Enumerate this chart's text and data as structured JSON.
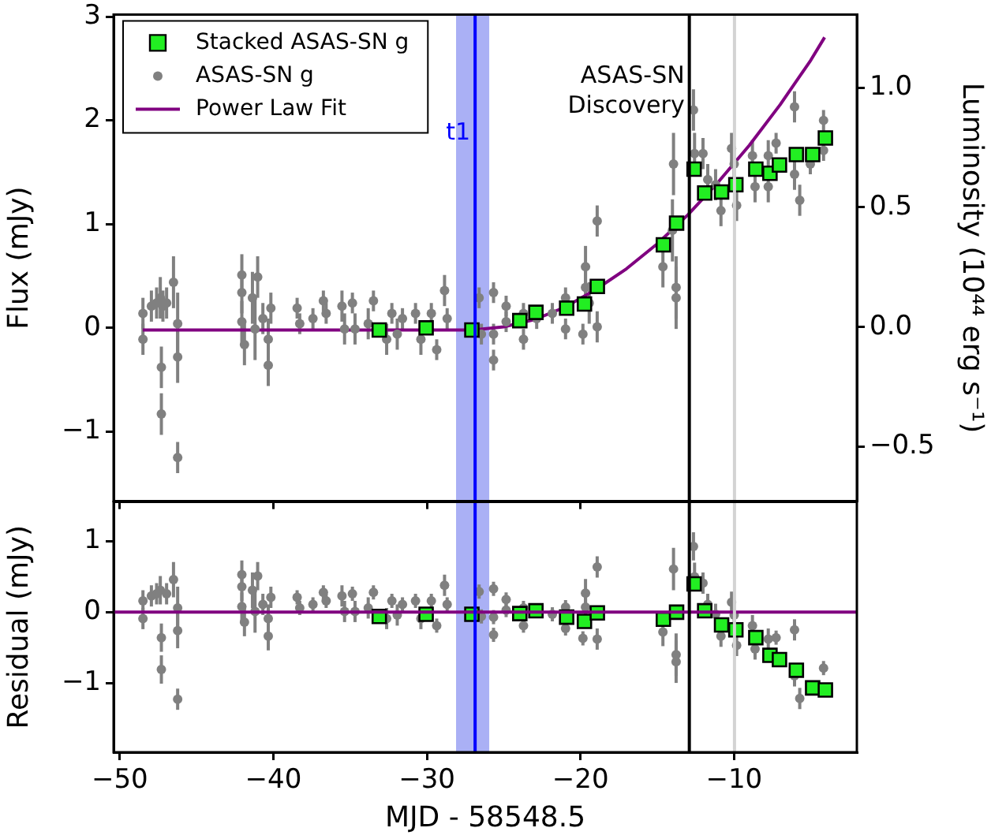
{
  "chart_data": [
    {
      "type": "scatter",
      "ylabel": "Flux (mJy)",
      "y2label": "Luminosity (10⁴⁴ erg s⁻¹)",
      "legend": "top left",
      "tick_labels": "y",
      "xlim": [
        -50.4,
        -2
      ],
      "xticks": [
        -50,
        -40,
        -30,
        -20,
        -10
      ],
      "ylim": [
        -1.67,
        3.02
      ],
      "yticks": [
        {
          "value": -1,
          "label": "−1"
        },
        0,
        1,
        2,
        3
      ],
      "y2lim": [
        -0.727,
        1.305
      ],
      "y2ticks": [
        {
          "value": -0.5,
          "label": "−0.5"
        },
        {
          "value": 0,
          "label": "0.0"
        },
        {
          "value": 0.5,
          "label": "0.5"
        },
        {
          "value": 1,
          "label": "1.0"
        }
      ],
      "bands": [
        {
          "axis": "x",
          "from": -28.1,
          "to": -25.94,
          "color": "#aab0f5"
        }
      ],
      "ref_lines": [
        {
          "axis": "x",
          "value": -26.86,
          "label": "t1",
          "color": "#0000ff"
        },
        {
          "axis": "x",
          "value": -12.91,
          "label": "ASAS-SN Discovery",
          "color": "#000000"
        },
        {
          "axis": "x",
          "value": -9.97,
          "color": "#d3d3d3"
        }
      ],
      "series": [
        {
          "name": "Stacked ASAS-SN g",
          "type": "scatter",
          "marker": "square",
          "color": "#22ee22",
          "x": [
            -33.1,
            -30.05,
            -27.07,
            -23.95,
            -22.9,
            -20.9,
            -19.74,
            -18.9,
            -14.6,
            -13.74,
            -12.6,
            -11.91,
            -10.81,
            -9.88,
            -8.58,
            -7.66,
            -7.04,
            -5.94,
            -4.88,
            -4.05
          ],
          "values": [
            -0.02,
            0,
            -0.02,
            0.07,
            0.15,
            0.19,
            0.23,
            0.4,
            0.8,
            1.01,
            1.53,
            1.3,
            1.31,
            1.38,
            1.53,
            1.49,
            1.57,
            1.67,
            1.67,
            1.83
          ]
        },
        {
          "name": "ASAS-SN g",
          "type": "scatter",
          "marker": "circle",
          "color": "#808080",
          "x": [
            -48.49,
            -48.49,
            -47.94,
            -47.6,
            -47.36,
            -47.29,
            -47.29,
            -47.19,
            -46.95,
            -46.5,
            -46.23,
            -46.23,
            -46.23,
            -42.05,
            -42.05,
            -42.05,
            -41.88,
            -41.36,
            -41.19,
            -41.02,
            -40.68,
            -40.33,
            -40.33,
            -40.16,
            -38.45,
            -38.28,
            -37.42,
            -36.74,
            -36.56,
            -35.53,
            -35.36,
            -34.85,
            -34.68,
            -33.82,
            -33.48,
            -32.62,
            -32.28,
            -31.93,
            -31.59,
            -30.74,
            -30.39,
            -29.71,
            -29.36,
            -28.85,
            -28.68,
            -26.6,
            -26.45,
            -25.66,
            -25.66,
            -25.66,
            -24.84,
            -24.84,
            -23.71,
            -23.71,
            -22.85,
            -21.83,
            -20.97,
            -20.97,
            -19.84,
            -19.67,
            -19.67,
            -19.43,
            -18.91,
            -18.91,
            -14.63,
            -14.01,
            -13.94,
            -13.77,
            -13.77,
            -12.64,
            -12.57,
            -12.02,
            -11.71,
            -11.2,
            -10.85,
            -10.16,
            -9.99,
            -9.83,
            -8.8,
            -8.63,
            -7.77,
            -7.77,
            -7.26,
            -6.06,
            -6.06,
            -5.72,
            -5.03,
            -4.17,
            -4.17
          ],
          "values": [
            0.14,
            -0.11,
            0.21,
            0.24,
            0.29,
            -0.38,
            -0.83,
            0.21,
            0.24,
            0.44,
            0.04,
            -0.28,
            -1.25,
            0.51,
            0.34,
            0.06,
            -0.16,
            0.29,
            -0.01,
            0.49,
            0.09,
            -0.11,
            -0.36,
            0.19,
            0.19,
            0.04,
            0.09,
            0.26,
            0.14,
            0.21,
            -0.01,
            0.24,
            -0.01,
            0.04,
            0.26,
            -0.11,
            0.14,
            -0.06,
            0.09,
            0.14,
            -0.11,
            0.14,
            -0.21,
            0.36,
            0.09,
            0.29,
            -0.06,
            0.34,
            -0.06,
            -0.31,
            0.21,
            0.06,
            0.14,
            -0.11,
            0.09,
            0.14,
            0.29,
            -0.01,
            -0.06,
            0.59,
            0.39,
            0.24,
            1.03,
            0.01,
            0.59,
            0.94,
            1.58,
            0.39,
            0.29,
            2.1,
            1.68,
            1.68,
            1.43,
            1.38,
            1.13,
            1.73,
            1.58,
            1.18,
            1.66,
            1.36,
            1.66,
            1.36,
            1.78,
            2.13,
            1.48,
            1.23,
            1.58,
            2.0,
            1.71
          ],
          "errors": [
            0.15,
            0.15,
            0.15,
            0.15,
            0.2,
            0.2,
            0.2,
            0.15,
            0.15,
            0.25,
            0.3,
            0.25,
            0.15,
            0.2,
            0.2,
            0.2,
            0.2,
            0.25,
            0.3,
            0.2,
            0.15,
            0.2,
            0.2,
            0.15,
            0.1,
            0.1,
            0.1,
            0.1,
            0.1,
            0.15,
            0.15,
            0.1,
            0.15,
            0.15,
            0.1,
            0.15,
            0.1,
            0.15,
            0.1,
            0.1,
            0.15,
            0.1,
            0.1,
            0.15,
            0.1,
            0.1,
            0.1,
            0.1,
            0.1,
            0.1,
            0.1,
            0.1,
            0.1,
            0.1,
            0.1,
            0.1,
            0.1,
            0.1,
            0.1,
            0.2,
            0.2,
            0.2,
            0.15,
            0.15,
            0.2,
            0.3,
            0.3,
            0.3,
            0.3,
            0.2,
            0.2,
            0.15,
            0.15,
            0.15,
            0.15,
            0.15,
            0.15,
            0.15,
            0.15,
            0.15,
            0.15,
            0.15,
            0.1,
            0.15,
            0.15,
            0.15,
            0.1,
            0.1,
            0.1
          ]
        },
        {
          "name": "Power Law Fit",
          "type": "line",
          "marker": "none",
          "color": "#800080",
          "x": [
            -48.5,
            -27,
            -25,
            -23,
            -21,
            -19,
            -17,
            -15,
            -13,
            -11,
            -9,
            -7,
            -5,
            -4.1
          ],
          "values": [
            -0.02,
            -0.02,
            0.01,
            0.08,
            0.2,
            0.37,
            0.57,
            0.81,
            1.09,
            1.41,
            1.76,
            2.15,
            2.58,
            2.8
          ]
        }
      ]
    },
    {
      "type": "scatter",
      "xlabel": "MJD - 58548.5",
      "ylabel": "Residual (mJy)",
      "xlim": [
        -50.4,
        -2
      ],
      "xticks": [
        {
          "value": -50,
          "label": "−50"
        },
        {
          "value": -40,
          "label": "−40"
        },
        {
          "value": -30,
          "label": "−30"
        },
        {
          "value": -20,
          "label": "−20"
        },
        {
          "value": -10,
          "label": "−10"
        }
      ],
      "ylim": [
        -1.98,
        1.56
      ],
      "yticks": [
        {
          "value": -1,
          "label": "−1"
        },
        0,
        1
      ],
      "bands": [
        {
          "axis": "x",
          "from": -28.1,
          "to": -25.94,
          "color": "#aab0f5"
        }
      ],
      "ref_lines": [
        {
          "axis": "y",
          "value": 0,
          "color": "#800080"
        },
        {
          "axis": "x",
          "value": -26.86,
          "color": "#0000ff"
        },
        {
          "axis": "x",
          "value": -12.91,
          "color": "#000000"
        },
        {
          "axis": "x",
          "value": -9.97,
          "color": "#d3d3d3"
        }
      ],
      "series": [
        {
          "type": "scatter",
          "marker": "square",
          "color": "#22ee22",
          "x": [
            -33.1,
            -30.05,
            -27.07,
            -23.95,
            -22.9,
            -20.9,
            -19.74,
            -18.9,
            -14.6,
            -13.74,
            -12.6,
            -11.91,
            -10.81,
            -9.88,
            -8.58,
            -7.66,
            -7.04,
            -5.94,
            -4.88,
            -4.05
          ],
          "values": [
            -0.06,
            -0.03,
            -0.03,
            -0.02,
            0.02,
            -0.07,
            -0.13,
            -0.01,
            -0.1,
            0,
            0.4,
            0.02,
            -0.18,
            -0.25,
            -0.36,
            -0.61,
            -0.67,
            -0.82,
            -1.07,
            -1.1
          ]
        },
        {
          "type": "scatter",
          "marker": "circle",
          "color": "#808080",
          "x": [
            -48.49,
            -48.49,
            -47.94,
            -47.6,
            -47.36,
            -47.29,
            -47.29,
            -46.95,
            -46.5,
            -46.23,
            -46.23,
            -46.23,
            -42.05,
            -42.05,
            -42.05,
            -41.88,
            -41.36,
            -41.19,
            -41.02,
            -40.68,
            -40.33,
            -40.33,
            -40.16,
            -38.45,
            -38.28,
            -37.42,
            -36.74,
            -36.56,
            -35.53,
            -35.36,
            -34.85,
            -34.68,
            -33.82,
            -33.48,
            -32.62,
            -32.28,
            -31.93,
            -31.59,
            -30.74,
            -30.39,
            -29.71,
            -29.36,
            -28.85,
            -28.68,
            -26.6,
            -26.45,
            -25.66,
            -25.66,
            -25.66,
            -24.84,
            -24.84,
            -23.71,
            -23.71,
            -21.83,
            -20.97,
            -20.97,
            -19.84,
            -19.67,
            -19.67,
            -18.91,
            -18.91,
            -14.63,
            -13.94,
            -13.77,
            -13.77,
            -12.64,
            -12.57,
            -12.02,
            -11.71,
            -11.2,
            -10.85,
            -10.16,
            -9.99,
            -9.83,
            -8.8,
            -8.63,
            -7.77,
            -7.26,
            -6.06,
            -6.06,
            -5.72,
            -4.17
          ],
          "values": [
            0.16,
            -0.09,
            0.23,
            0.26,
            0.31,
            -0.36,
            -0.81,
            0.26,
            0.46,
            0.06,
            -0.26,
            -1.23,
            0.53,
            0.36,
            0.08,
            -0.14,
            0.31,
            0.01,
            0.51,
            0.11,
            -0.09,
            -0.34,
            0.21,
            0.21,
            0.06,
            0.11,
            0.28,
            0.16,
            0.23,
            0.01,
            0.26,
            0.01,
            0.06,
            0.28,
            -0.09,
            0.16,
            -0.04,
            0.11,
            0.16,
            -0.09,
            0.16,
            -0.19,
            0.38,
            0.11,
            0.29,
            -0.06,
            0.33,
            -0.07,
            -0.32,
            0.18,
            0.03,
            0.06,
            -0.19,
            -0.03,
            0.07,
            -0.23,
            -0.37,
            0.27,
            0.07,
            0.64,
            -0.38,
            -0.28,
            0.61,
            -0.6,
            -0.7,
            0.93,
            0.5,
            0.41,
            0.11,
            -0.03,
            -0.34,
            0.14,
            -0.04,
            -0.47,
            -0.19,
            -0.52,
            -0.38,
            -0.36,
            -0.25,
            -0.9,
            -1.22,
            -0.79
          ],
          "errors": [
            0.15,
            0.15,
            0.15,
            0.15,
            0.2,
            0.2,
            0.2,
            0.15,
            0.25,
            0.3,
            0.25,
            0.15,
            0.2,
            0.2,
            0.2,
            0.2,
            0.25,
            0.3,
            0.2,
            0.15,
            0.2,
            0.2,
            0.15,
            0.1,
            0.1,
            0.1,
            0.1,
            0.1,
            0.15,
            0.15,
            0.1,
            0.15,
            0.15,
            0.1,
            0.15,
            0.1,
            0.15,
            0.1,
            0.1,
            0.15,
            0.1,
            0.1,
            0.15,
            0.1,
            0.1,
            0.1,
            0.1,
            0.1,
            0.1,
            0.1,
            0.1,
            0.1,
            0.1,
            0.1,
            0.1,
            0.1,
            0.1,
            0.2,
            0.2,
            0.15,
            0.15,
            0.2,
            0.3,
            0.3,
            0.3,
            0.2,
            0.2,
            0.15,
            0.15,
            0.15,
            0.15,
            0.15,
            0.15,
            0.15,
            0.15,
            0.15,
            0.15,
            0.1,
            0.15,
            0.15,
            0.15,
            0.1
          ]
        }
      ]
    }
  ]
}
